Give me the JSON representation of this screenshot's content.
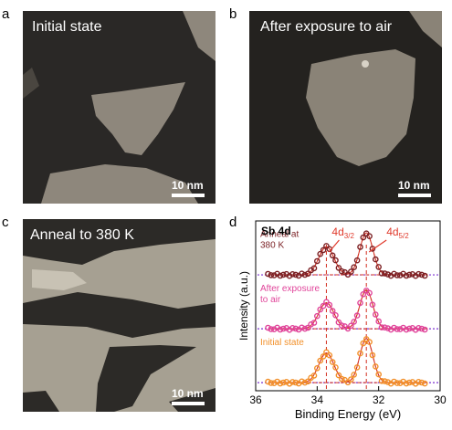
{
  "panels": [
    {
      "letter": "a",
      "title": "Initial state",
      "scale": "10 nm"
    },
    {
      "letter": "b",
      "title": "After exposure to air",
      "scale": "10 nm"
    },
    {
      "letter": "c",
      "title": "Anneal to 380 K",
      "scale": "10 nm"
    },
    {
      "letter": "d"
    }
  ],
  "colors": {
    "maroon": "#7a1f23",
    "magenta": "#e0449a",
    "orange": "#f2902a",
    "fit": "#d32f1f",
    "baseline": "#7b2fd0",
    "annot": "#e03a2c"
  },
  "chart_data": {
    "type": "line",
    "title": "Sb 4d",
    "xlabel": "Binding Energy (eV)",
    "ylabel": "Intensity (a.u.)",
    "xlim": [
      36,
      30
    ],
    "x_reversed": true,
    "xticks": [
      "36",
      "34",
      "32",
      "30"
    ],
    "peak_labels": [
      {
        "base": "4d",
        "sub": "3/2",
        "x": 33.7
      },
      {
        "base": "4d",
        "sub": "5/2",
        "x": 32.4
      }
    ],
    "series": [
      {
        "name": "Anneal at 380 K",
        "label_lines": [
          "Anneal at",
          "380 K"
        ],
        "color": "#7a1f23",
        "offset": 2.0,
        "peaks": [
          {
            "x": 33.7,
            "h": 0.52,
            "w": 0.35
          },
          {
            "x": 32.4,
            "h": 0.78,
            "w": 0.3
          }
        ]
      },
      {
        "name": "After exposure to air",
        "label_lines": [
          "After exposure",
          "to air"
        ],
        "color": "#e0449a",
        "offset": 1.0,
        "peaks": [
          {
            "x": 33.7,
            "h": 0.48,
            "w": 0.35
          },
          {
            "x": 32.4,
            "h": 0.72,
            "w": 0.3
          }
        ]
      },
      {
        "name": "Initial state",
        "label_lines": [
          "Initial state"
        ],
        "color": "#f2902a",
        "offset": 0.0,
        "peaks": [
          {
            "x": 33.7,
            "h": 0.55,
            "w": 0.35
          },
          {
            "x": 32.4,
            "h": 0.82,
            "w": 0.3
          }
        ]
      }
    ]
  }
}
